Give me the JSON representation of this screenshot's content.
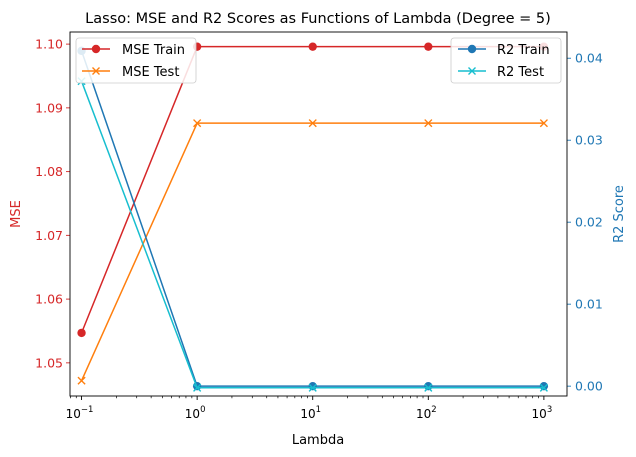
{
  "chart_data": {
    "type": "line",
    "title": "Lasso: MSE and R2 Scores as Functions of Lambda (Degree = 5)",
    "xlabel": "Lambda",
    "ylabel_left": "MSE",
    "ylabel_right": "R2 Score",
    "x_scale": "log",
    "x": [
      0.1,
      1,
      10,
      100,
      1000
    ],
    "x_tick_labels": [
      {
        "base": "10",
        "exp": "−1"
      },
      {
        "base": "10",
        "exp": "0"
      },
      {
        "base": "10",
        "exp": "1"
      },
      {
        "base": "10",
        "exp": "2"
      },
      {
        "base": "10",
        "exp": "3"
      }
    ],
    "xlim_log10": [
      -1.1,
      3.2
    ],
    "ylim_left": [
      1.0448,
      1.1019
    ],
    "ylim_right": [
      -0.0012,
      0.0432
    ],
    "left_ticks": [
      "1.05",
      "1.06",
      "1.07",
      "1.08",
      "1.09",
      "1.10"
    ],
    "right_ticks": [
      "0.00",
      "0.01",
      "0.02",
      "0.03",
      "0.04"
    ],
    "colors": {
      "red": "#d62728",
      "orange": "#ff7f0e",
      "blue": "#1f77b4",
      "cyan": "#17becf"
    },
    "series": [
      {
        "name": "MSE Train",
        "axis": "left",
        "color": "#d62728",
        "marker": "o",
        "values": [
          1.0547,
          1.0996,
          1.0996,
          1.0996,
          1.0996
        ]
      },
      {
        "name": "MSE Test",
        "axis": "left",
        "color": "#ff7f0e",
        "marker": "x",
        "values": [
          1.0472,
          1.0876,
          1.0876,
          1.0876,
          1.0876
        ]
      },
      {
        "name": "R2 Train",
        "axis": "right",
        "color": "#1f77b4",
        "marker": "o",
        "values": [
          0.0409,
          0.0,
          0.0,
          0.0,
          0.0
        ]
      },
      {
        "name": "R2 Test",
        "axis": "right",
        "color": "#17becf",
        "marker": "x",
        "values": [
          0.0372,
          -0.0002,
          -0.0002,
          -0.0002,
          -0.0002
        ]
      }
    ],
    "legend_left": {
      "placement": "upper-left",
      "entries": [
        "MSE Train",
        "MSE Test"
      ]
    },
    "legend_right": {
      "placement": "upper-right",
      "entries": [
        "R2 Train",
        "R2 Test"
      ]
    }
  }
}
